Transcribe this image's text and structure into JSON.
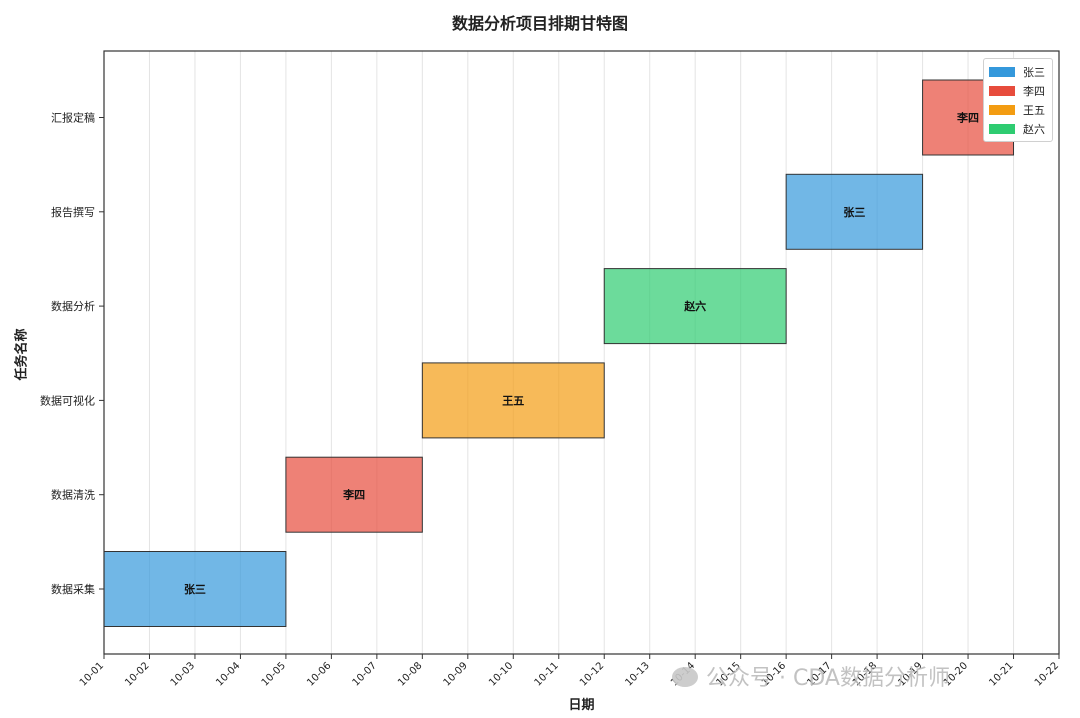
{
  "chart_data": {
    "type": "gantt",
    "title": "数据分析项目排期甘特图",
    "xlabel": "日期",
    "ylabel": "任务名称",
    "x_ticks": [
      "10-01",
      "10-02",
      "10-03",
      "10-04",
      "10-05",
      "10-06",
      "10-07",
      "10-08",
      "10-09",
      "10-10",
      "10-11",
      "10-12",
      "10-13",
      "10-14",
      "10-15",
      "10-16",
      "10-17",
      "10-18",
      "10-19",
      "10-20",
      "10-21",
      "10-22"
    ],
    "tasks": [
      {
        "name": "数据采集",
        "owner": "张三",
        "start": "10-01",
        "end": "10-05"
      },
      {
        "name": "数据清洗",
        "owner": "李四",
        "start": "10-05",
        "end": "10-08"
      },
      {
        "name": "数据可视化",
        "owner": "王五",
        "start": "10-08",
        "end": "10-12"
      },
      {
        "name": "数据分析",
        "owner": "赵六",
        "start": "10-12",
        "end": "10-16"
      },
      {
        "name": "报告撰写",
        "owner": "张三",
        "start": "10-16",
        "end": "10-19"
      },
      {
        "name": "汇报定稿",
        "owner": "李四",
        "start": "10-19",
        "end": "10-21"
      }
    ],
    "legend": [
      {
        "label": "张三",
        "color": "#3498db"
      },
      {
        "label": "李四",
        "color": "#e74c3c"
      },
      {
        "label": "王五",
        "color": "#f39c12"
      },
      {
        "label": "赵六",
        "color": "#2ecc71"
      }
    ],
    "legend_position": "top-right",
    "grid": "x"
  },
  "watermark": "公众号 · CDA数据分析师"
}
